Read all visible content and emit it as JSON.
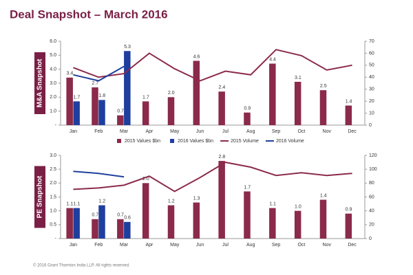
{
  "title": "Deal Snapshot – March 2016",
  "footer": "© 2016 Grant Thornton India LLP. All rights reserved.",
  "chart_data": [
    {
      "type": "bar",
      "ylabel": "M&A Snapshot",
      "legend": "bottom",
      "categories": [
        "Jan",
        "Feb",
        "Mar",
        "Apr",
        "May",
        "Jun",
        "Jul",
        "Aug",
        "Sep",
        "Oct",
        "Nov",
        "Dec"
      ],
      "ylim": [
        0,
        6
      ],
      "yticks": [
        {
          "value": 0,
          "label": "-"
        },
        {
          "value": 1,
          "label": "1.0"
        },
        {
          "value": 2,
          "label": "2.0"
        },
        {
          "value": 3,
          "label": "3.0"
        },
        {
          "value": 4,
          "label": "4.0"
        },
        {
          "value": 5,
          "label": "5.0"
        },
        {
          "value": 6,
          "label": "6.0"
        }
      ],
      "y2lim": [
        0,
        70
      ],
      "y2ticks": [
        0,
        10,
        20,
        30,
        40,
        50,
        60,
        70
      ],
      "series": [
        {
          "name": "2015 Values $bn",
          "type": "bar",
          "color": "#8b2a4a",
          "values": [
            3.4,
            2.7,
            0.7,
            1.7,
            2.0,
            4.6,
            2.4,
            0.9,
            4.4,
            3.1,
            2.5,
            1.4
          ],
          "value_labels": [
            "3.4",
            "2.7",
            "0.7",
            "1.7",
            "2.0",
            "4.6",
            "2.4",
            "0.9",
            "4.4",
            "3.1",
            "2.5",
            "1.4"
          ]
        },
        {
          "name": "2016 Values $bn",
          "type": "bar",
          "color": "#1f3f9e",
          "values": [
            1.7,
            1.8,
            5.3,
            null,
            null,
            null,
            null,
            null,
            null,
            null,
            null,
            null
          ],
          "value_labels": [
            "1.7",
            "1.8",
            "5.3",
            null,
            null,
            null,
            null,
            null,
            null,
            null,
            null,
            null
          ]
        },
        {
          "name": "2015 Volume",
          "type": "line",
          "axis": "y2",
          "color": "#8b2a4a",
          "values": [
            48,
            40,
            43,
            60,
            47,
            37,
            45,
            42,
            63,
            58,
            46,
            50
          ]
        },
        {
          "name": "2016 Volume",
          "type": "line",
          "axis": "y2",
          "color": "#1f3f9e",
          "values": [
            42,
            37,
            49,
            null,
            null,
            null,
            null,
            null,
            null,
            null,
            null,
            null
          ]
        }
      ]
    },
    {
      "type": "bar",
      "ylabel": "PE Snapshot",
      "legend": false,
      "categories": [
        "Jan",
        "Feb",
        "Mar",
        "Apr",
        "May",
        "Jun",
        "Jul",
        "Aug",
        "Sep",
        "Oct",
        "Nov",
        "Dec"
      ],
      "ylim": [
        0,
        3
      ],
      "yticks": [
        {
          "value": 0,
          "label": "-"
        },
        0.5,
        {
          "value": 1,
          "label": "1.0"
        },
        1.5,
        {
          "value": 2,
          "label": "2.0"
        },
        2.5,
        {
          "value": 3,
          "label": "3.0"
        }
      ],
      "y2lim": [
        0,
        120
      ],
      "y2ticks": [
        0,
        20,
        40,
        60,
        80,
        100,
        120
      ],
      "series": [
        {
          "type": "bar",
          "color": "#8b2a4a",
          "values": [
            1.1,
            0.7,
            0.7,
            2.0,
            1.2,
            1.3,
            2.8,
            1.7,
            1.1,
            1.0,
            1.4,
            0.9
          ],
          "value_labels": [
            "1.1",
            "0.7",
            "0.7",
            "2.0",
            "1.2",
            "1.3",
            "2.8",
            "1.7",
            "1.1",
            "1.0",
            "1.4",
            "0.9"
          ]
        },
        {
          "type": "bar",
          "color": "#1f3f9e",
          "values": [
            1.1,
            1.2,
            0.6,
            null,
            null,
            null,
            null,
            null,
            null,
            null,
            null,
            null
          ],
          "value_labels": [
            "1.1",
            "1.2",
            "0.6",
            null,
            null,
            null,
            null,
            null,
            null,
            null,
            null,
            null
          ]
        },
        {
          "type": "line",
          "axis": "y2",
          "color": "#8b2a4a",
          "values": [
            71,
            73,
            77,
            90,
            68,
            88,
            110,
            103,
            91,
            95,
            91,
            94
          ]
        },
        {
          "type": "line",
          "axis": "y2",
          "color": "#1f3f9e",
          "values": [
            97,
            94,
            89,
            null,
            null,
            null,
            null,
            null,
            null,
            null,
            null,
            null
          ]
        }
      ]
    }
  ]
}
